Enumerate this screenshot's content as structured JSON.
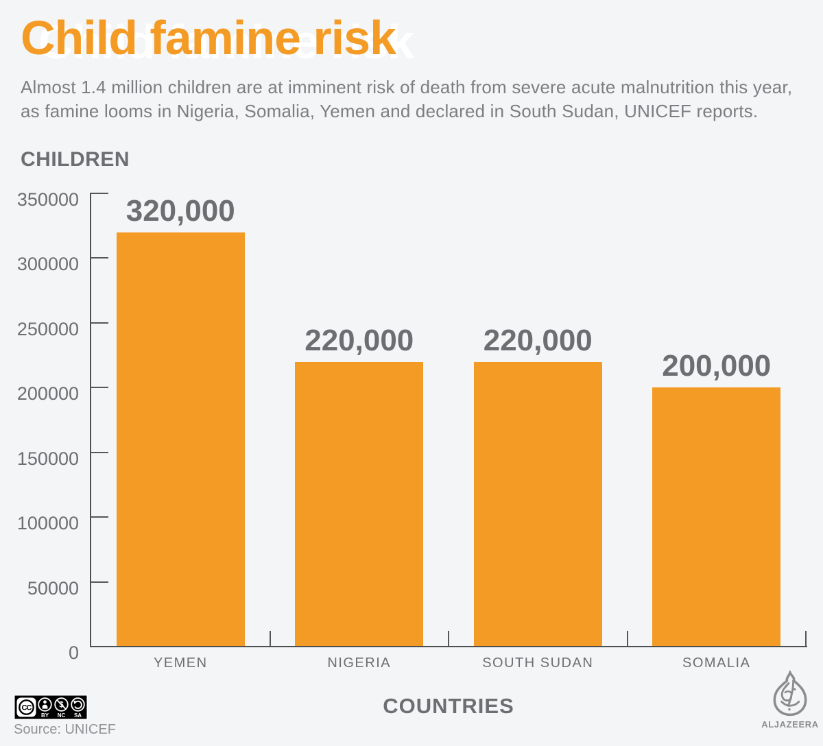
{
  "page": {
    "title": "Child famine risk",
    "subtitle_line1": "Almost 1.4 million children are at imminent risk of death from severe acute malnutrition this year,",
    "subtitle_line2": "as famine looms in Nigeria, Somalia, Yemen and declared in South Sudan, UNICEF reports."
  },
  "chart_data": {
    "type": "bar",
    "title": "Child famine risk",
    "ylabel": "CHILDREN",
    "xlabel": "COUNTRIES",
    "categories": [
      "YEMEN",
      "NIGERIA",
      "SOUTH SUDAN",
      "SOMALIA"
    ],
    "values": [
      320000,
      220000,
      220000,
      200000
    ],
    "value_labels": [
      "320,000",
      "220,000",
      "220,000",
      "200,000"
    ],
    "ylim": [
      0,
      350000
    ],
    "ytick_step": 50000,
    "ytick_labels": [
      "350000",
      "300000",
      "250000",
      "200000",
      "150000",
      "100000",
      "50000",
      "0"
    ],
    "grid": false,
    "legend": null,
    "bar_color": "#f49b25"
  },
  "colors": {
    "background": "#f4f5f7",
    "accent_orange": "#f49b25",
    "label_gray": "#6d6e71",
    "subtitle_gray": "#7d7e81",
    "axis_gray": "#4d4e50",
    "logo_gray": "#8a8c8e",
    "source_gray": "#919396"
  },
  "footer": {
    "license": {
      "cc_label": "CC",
      "parts": [
        "BY",
        "NC",
        "SA"
      ]
    },
    "source": "Source: UNICEF",
    "brand": "ALJAZEERA"
  }
}
